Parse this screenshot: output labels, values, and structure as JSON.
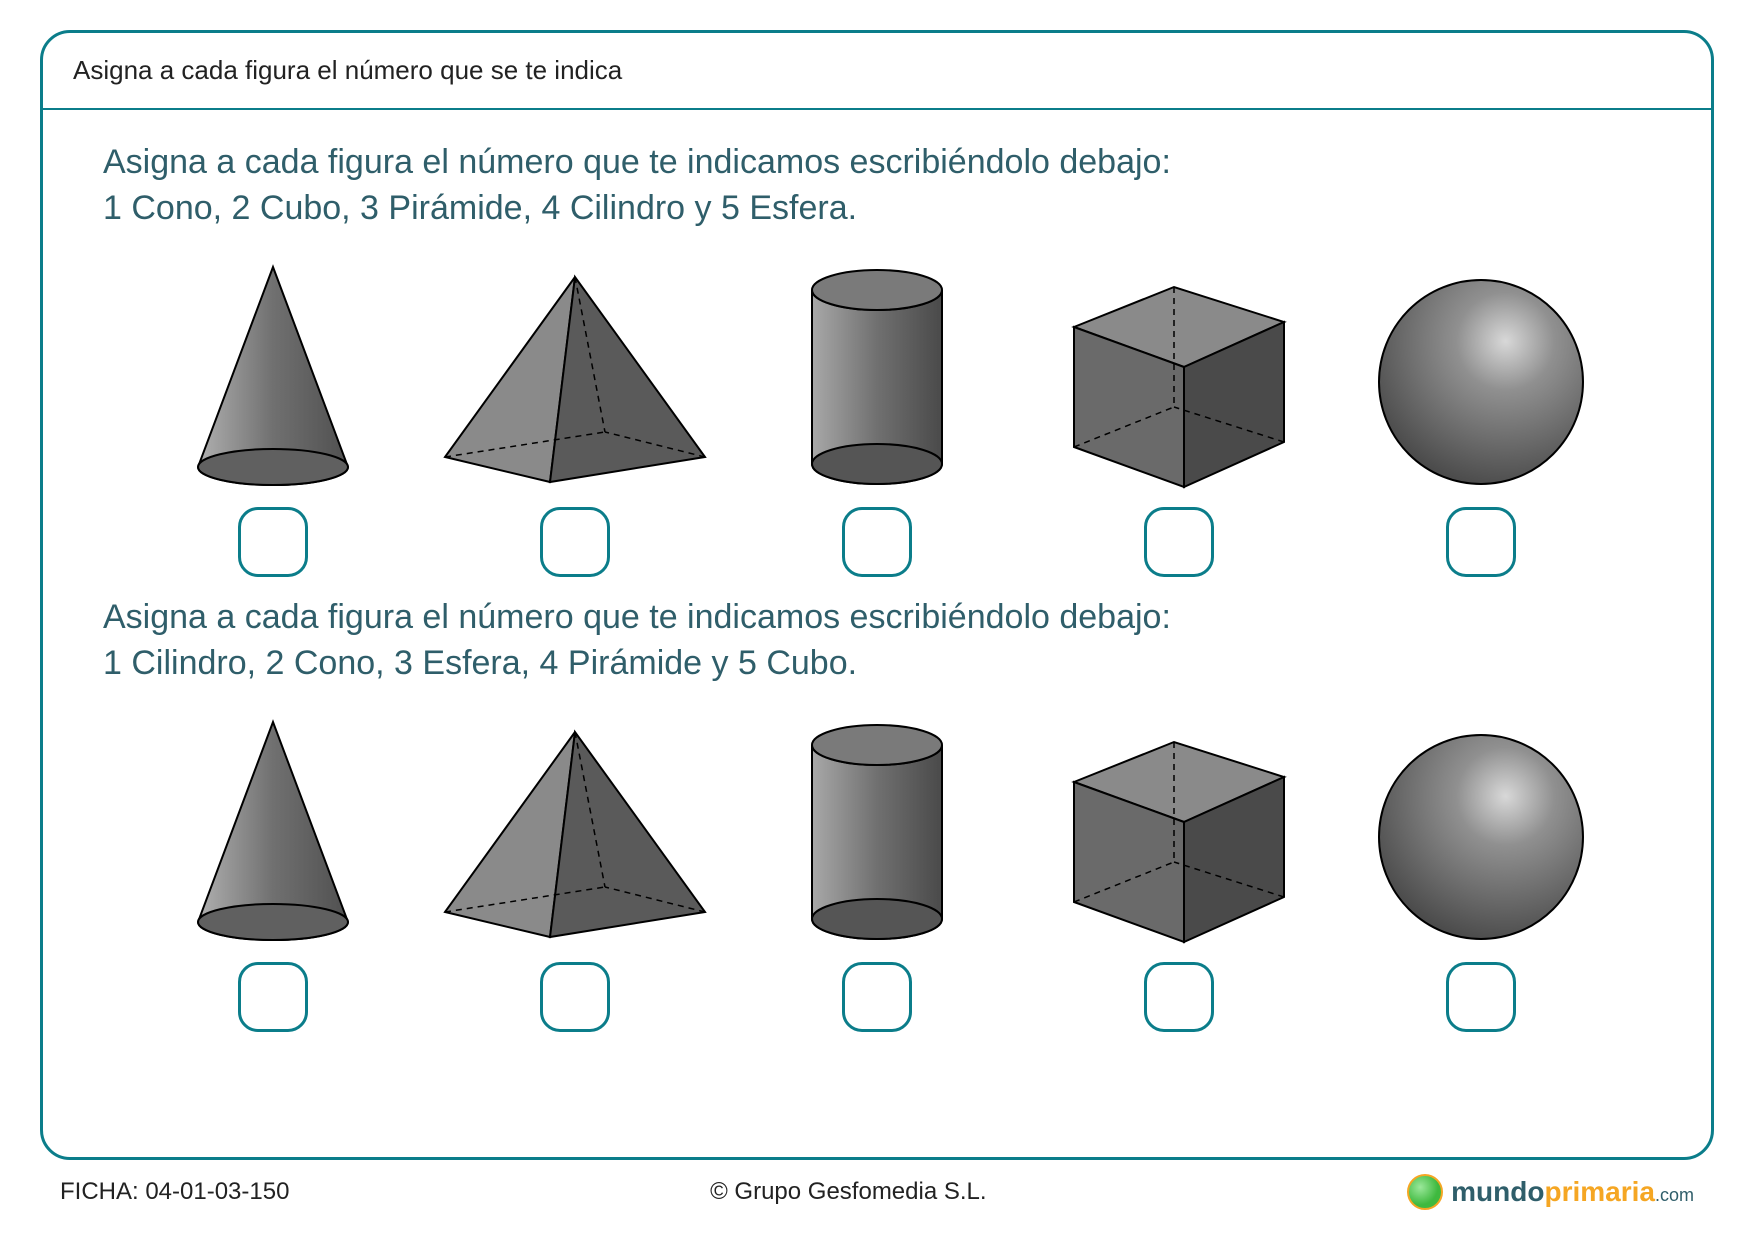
{
  "colors": {
    "border": "#0b7d8a",
    "heading": "#2f5e6a",
    "shape_fill_light": "#9a9a9a",
    "shape_fill_mid": "#7a7a7a",
    "shape_fill_dark": "#555555",
    "shape_stroke": "#000000"
  },
  "header": {
    "title": "Asigna a cada figura el número que se te indica"
  },
  "exercise1": {
    "line1": "Asigna a cada figura el número que te indicamos escribiéndolo debajo:",
    "line2": "1 Cono, 2 Cubo, 3 Pirámide, 4 Cilindro y 5 Esfera.",
    "shapes": [
      "cone",
      "pyramid",
      "cylinder",
      "cube",
      "sphere"
    ]
  },
  "exercise2": {
    "line1": "Asigna a cada figura el número que te indicamos escribiéndolo debajo:",
    "line2": "1 Cilindro, 2 Cono, 3 Esfera, 4 Pirámide y 5 Cubo.",
    "shapes": [
      "cone",
      "pyramid",
      "cylinder",
      "cube",
      "sphere"
    ]
  },
  "footer": {
    "ficha_label": "FICHA: 04-01-03-150",
    "copyright": "© Grupo Gesfomedia S.L.",
    "logo_mundo": "mundo",
    "logo_primaria": "primaria",
    "logo_com": ".com"
  }
}
